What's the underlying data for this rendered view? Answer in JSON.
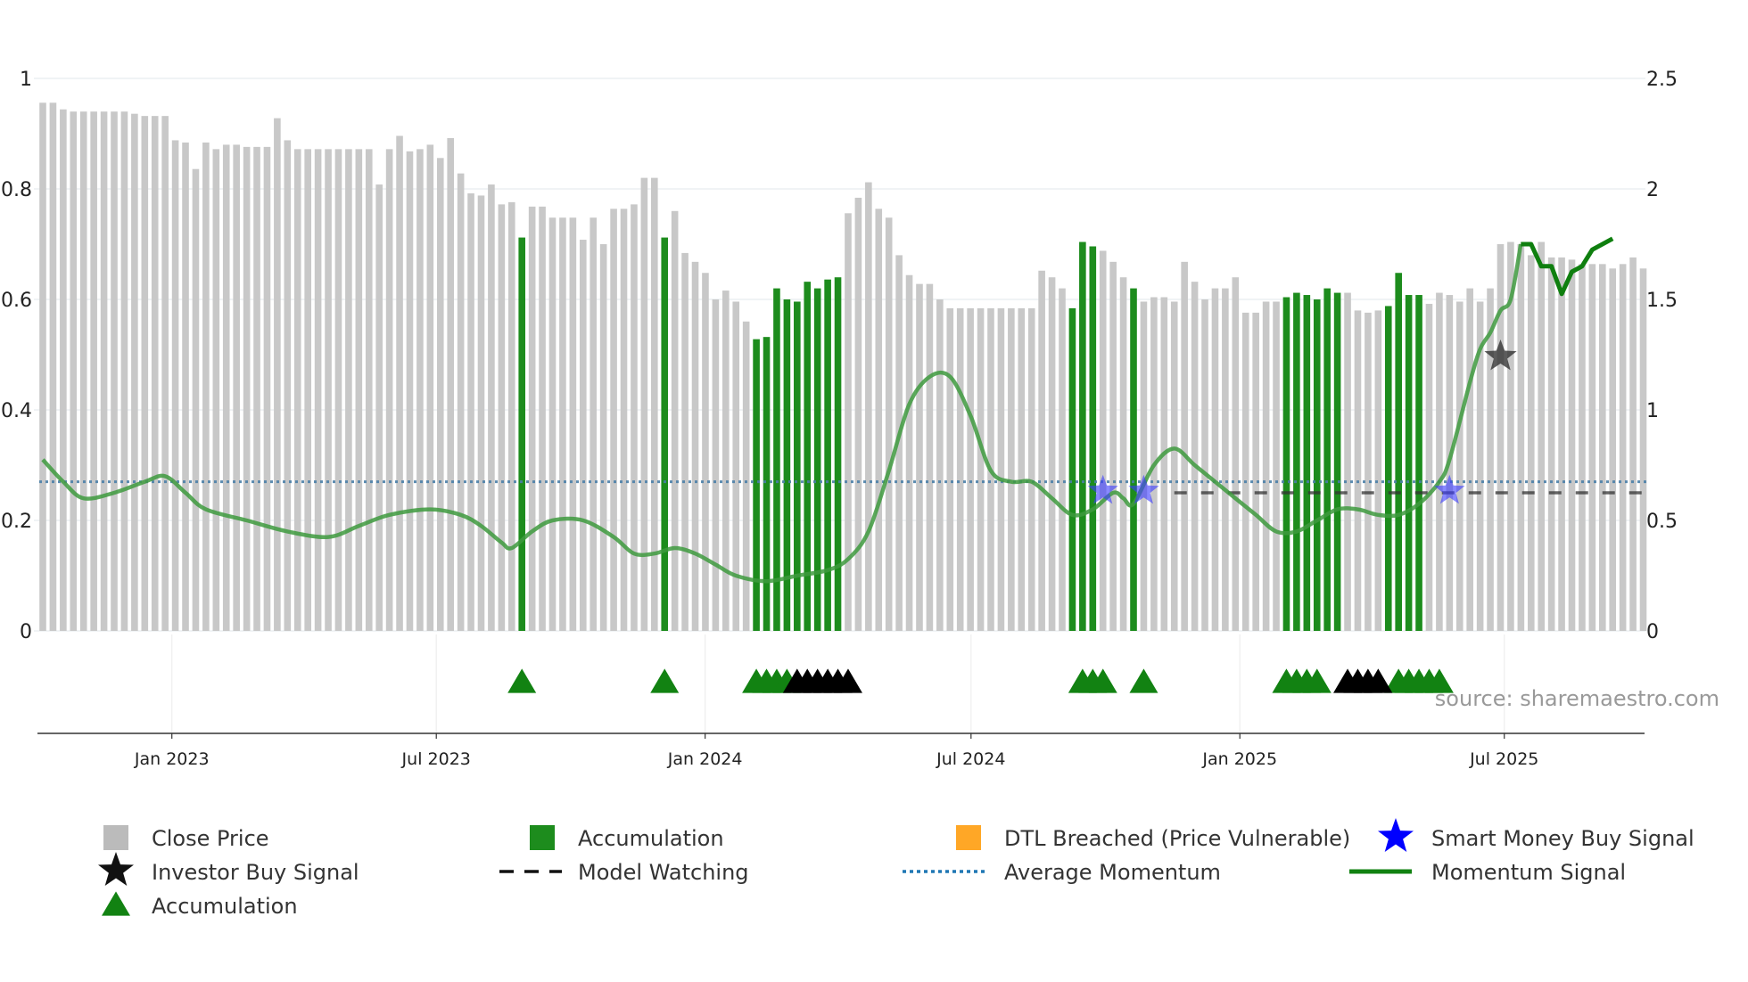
{
  "chart_data": {
    "type": "bar+line",
    "left_axis": {
      "min": 0,
      "max": 1,
      "ticks": [
        "0",
        "0.2",
        "0.4",
        "0.6",
        "0.8",
        "1"
      ]
    },
    "right_axis": {
      "min": 0,
      "max": 2.5,
      "ticks": [
        "0",
        "0.5",
        "1",
        "1.5",
        "2",
        "2.5"
      ]
    },
    "x_axis": {
      "start": "2022-10-01",
      "end": "2025-10-05",
      "ticks": [
        {
          "date": "2023-01-01",
          "label": "Jan 2023"
        },
        {
          "date": "2023-07-01",
          "label": "Jul 2023"
        },
        {
          "date": "2024-01-01",
          "label": "Jan 2024"
        },
        {
          "date": "2024-07-01",
          "label": "Jul 2024"
        },
        {
          "date": "2025-01-01",
          "label": "Jan 2025"
        },
        {
          "date": "2025-07-01",
          "label": "Jul 2025"
        }
      ]
    },
    "close_price": [
      2.39,
      2.39,
      2.36,
      2.35,
      2.35,
      2.35,
      2.35,
      2.35,
      2.35,
      2.34,
      2.33,
      2.33,
      2.33,
      2.22,
      2.21,
      2.09,
      2.21,
      2.18,
      2.2,
      2.2,
      2.19,
      2.19,
      2.19,
      2.32,
      2.22,
      2.18,
      2.18,
      2.18,
      2.18,
      2.18,
      2.18,
      2.18,
      2.18,
      2.02,
      2.18,
      2.24,
      2.17,
      2.18,
      2.2,
      2.14,
      2.23,
      2.07,
      1.98,
      1.97,
      2.02,
      1.93,
      1.94,
      1.78,
      1.92,
      1.92,
      1.87,
      1.87,
      1.87,
      1.77,
      1.87,
      1.75,
      1.91,
      1.91,
      1.93,
      2.05,
      2.05,
      1.78,
      1.9,
      1.71,
      1.67,
      1.62,
      1.5,
      1.54,
      1.49,
      1.4,
      1.32,
      1.33,
      1.55,
      1.5,
      1.49,
      1.58,
      1.55,
      1.59,
      1.6,
      1.89,
      1.96,
      2.03,
      1.91,
      1.87,
      1.7,
      1.61,
      1.57,
      1.57,
      1.5,
      1.46,
      1.46,
      1.46,
      1.46,
      1.46,
      1.46,
      1.46,
      1.46,
      1.46,
      1.63,
      1.6,
      1.55,
      1.46,
      1.76,
      1.74,
      1.72,
      1.67,
      1.6,
      1.55,
      1.49,
      1.51,
      1.51,
      1.49,
      1.67,
      1.58,
      1.5,
      1.55,
      1.55,
      1.6,
      1.44,
      1.44,
      1.49,
      1.49,
      1.51,
      1.53,
      1.52,
      1.5,
      1.55,
      1.53,
      1.53,
      1.45,
      1.44,
      1.45,
      1.47,
      1.62,
      1.52,
      1.52,
      1.48,
      1.53,
      1.52,
      1.49,
      1.55,
      1.49,
      1.55,
      1.75,
      1.76,
      1.75,
      1.7,
      1.76,
      1.69,
      1.69,
      1.68,
      1.66,
      1.66,
      1.66,
      1.64,
      1.66,
      1.69,
      1.64
    ],
    "accumulation_bar_indices": [
      47,
      61,
      70,
      71,
      72,
      73,
      74,
      75,
      76,
      77,
      78,
      101,
      102,
      103,
      107,
      122,
      123,
      124,
      125,
      126,
      127,
      132,
      133,
      134,
      135
    ],
    "momentum_signal": [
      [
        0,
        0.31
      ],
      [
        2,
        0.27
      ],
      [
        4,
        0.24
      ],
      [
        7,
        0.25
      ],
      [
        10,
        0.27
      ],
      [
        12,
        0.28
      ],
      [
        14,
        0.25
      ],
      [
        16,
        0.22
      ],
      [
        20,
        0.2
      ],
      [
        24,
        0.18
      ],
      [
        28,
        0.17
      ],
      [
        31,
        0.19
      ],
      [
        34,
        0.21
      ],
      [
        38,
        0.22
      ],
      [
        41,
        0.21
      ],
      [
        43,
        0.19
      ],
      [
        45,
        0.16
      ],
      [
        46,
        0.15
      ],
      [
        48,
        0.18
      ],
      [
        50,
        0.2
      ],
      [
        53,
        0.2
      ],
      [
        56,
        0.17
      ],
      [
        58,
        0.14
      ],
      [
        60,
        0.14
      ],
      [
        62,
        0.15
      ],
      [
        64,
        0.14
      ],
      [
        66,
        0.12
      ],
      [
        68,
        0.1
      ],
      [
        71,
        0.09
      ],
      [
        74,
        0.1
      ],
      [
        77,
        0.11
      ],
      [
        79,
        0.13
      ],
      [
        81,
        0.18
      ],
      [
        83,
        0.29
      ],
      [
        85,
        0.41
      ],
      [
        87,
        0.46
      ],
      [
        89,
        0.46
      ],
      [
        91,
        0.39
      ],
      [
        93,
        0.29
      ],
      [
        95,
        0.27
      ],
      [
        97,
        0.27
      ],
      [
        99,
        0.24
      ],
      [
        101,
        0.21
      ],
      [
        103,
        0.22
      ],
      [
        105,
        0.25
      ],
      [
        106,
        0.24
      ],
      [
        107,
        0.23
      ],
      [
        109,
        0.3
      ],
      [
        111,
        0.33
      ],
      [
        113,
        0.3
      ],
      [
        115,
        0.27
      ],
      [
        117,
        0.24
      ],
      [
        119,
        0.21
      ],
      [
        121,
        0.18
      ],
      [
        123,
        0.18
      ],
      [
        125,
        0.2
      ],
      [
        127,
        0.22
      ],
      [
        129,
        0.22
      ],
      [
        131,
        0.21
      ],
      [
        133,
        0.21
      ],
      [
        135,
        0.23
      ],
      [
        137,
        0.27
      ],
      [
        138,
        0.31
      ],
      [
        140,
        0.45
      ],
      [
        141,
        0.51
      ],
      [
        142,
        0.54
      ],
      [
        143,
        0.58
      ],
      [
        144,
        0.6
      ],
      [
        145,
        0.7
      ],
      [
        146,
        0.7
      ],
      [
        147,
        0.66
      ],
      [
        148,
        0.66
      ],
      [
        149,
        0.61
      ],
      [
        150,
        0.65
      ],
      [
        151,
        0.66
      ],
      [
        152,
        0.69
      ],
      [
        154,
        0.71
      ]
    ],
    "momentum_highlight_from": 145,
    "average_momentum": 0.27,
    "model_watching": {
      "from": 111,
      "to": 157,
      "value": 0.25
    },
    "smart_money_buy_signals": [
      [
        104,
        0.26
      ],
      [
        108,
        0.26
      ],
      [
        138,
        0.26
      ]
    ],
    "investor_buy_signals": [
      [
        143,
        0.5
      ]
    ],
    "accumulation_triangles": [
      {
        "x": [
          47,
          61,
          70,
          71,
          72,
          73,
          102,
          103,
          104,
          108,
          122,
          123,
          124,
          125,
          133,
          134,
          135,
          136,
          137
        ],
        "color": "#128212"
      },
      {
        "x": [
          74,
          75,
          76,
          77,
          78,
          79,
          128,
          129,
          130,
          131
        ],
        "color": "#000000"
      }
    ],
    "legend": [
      {
        "label": "Close Price",
        "marker": "square",
        "color": "#bbbbbb"
      },
      {
        "label": "Accumulation",
        "marker": "square",
        "color": "#1d8c1d"
      },
      {
        "label": "DTL Breached (Price Vulnerable)",
        "marker": "square",
        "color": "#ffa726"
      },
      {
        "label": "Smart Money Buy Signal",
        "marker": "star",
        "color": "#0000ff"
      },
      {
        "label": "Investor Buy Signal",
        "marker": "star",
        "color": "#111111"
      },
      {
        "label": "Model Watching",
        "marker": "dash",
        "color": "#111111"
      },
      {
        "label": "Average Momentum",
        "marker": "dotted",
        "color": "#1f77b4"
      },
      {
        "label": "Momentum Signal",
        "marker": "line",
        "color": "#128212"
      },
      {
        "label": "Accumulation",
        "marker": "triangle",
        "color": "#128212"
      }
    ],
    "source": "source: sharemaestro.com",
    "colors": {
      "price_bar": "#c8c8c8",
      "accumulation_bar": "#1d8c1d",
      "momentum": "#3e9a3e",
      "momentum_highlight": "#0f7f0f",
      "average": "#4a7fa8",
      "smart_money": "#3a3aff",
      "investor": "#333333"
    }
  }
}
